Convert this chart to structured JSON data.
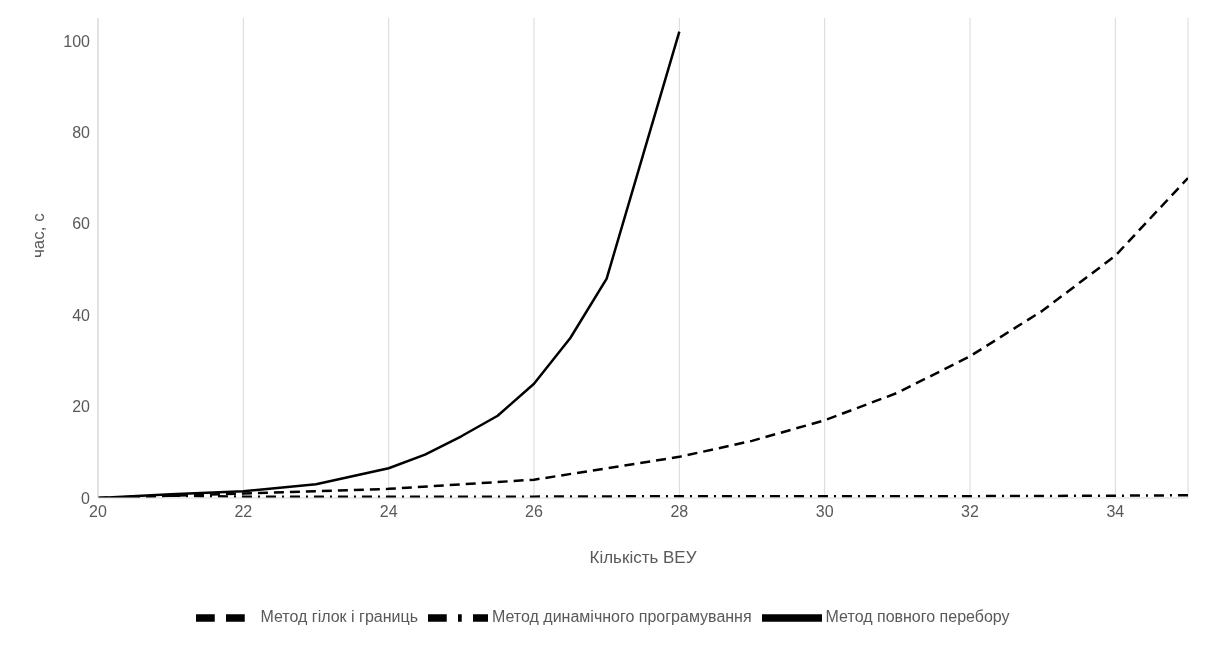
{
  "chart_data": {
    "type": "line",
    "xlabel": "Кількість ВЕУ",
    "ylabel": "час, с",
    "xlim": [
      20,
      35
    ],
    "xticks": [
      20,
      22,
      24,
      26,
      28,
      30,
      32,
      34
    ],
    "ylim": [
      0,
      105
    ],
    "yticks": [
      0,
      20,
      40,
      60,
      80,
      100
    ],
    "grid": "x",
    "legend": "bottom",
    "marker": "none",
    "series": [
      {
        "name": "Метод повного перебору",
        "color": "#000000",
        "line_style": "solid",
        "x": [
          20,
          21,
          22,
          23,
          24,
          24.5,
          25,
          25.5,
          26,
          26.5,
          27,
          27.5,
          28
        ],
        "values": [
          0,
          0.8,
          1.5,
          3,
          6.5,
          9.5,
          13.5,
          18,
          25,
          35,
          48,
          75,
          102
        ]
      },
      {
        "name": "Метод гілок і границь",
        "color": "#000000",
        "line_style": "dashed",
        "x": [
          20,
          22,
          24,
          26,
          28,
          29,
          30,
          31,
          32,
          33,
          34,
          35
        ],
        "values": [
          0,
          1,
          2,
          4,
          9,
          12.5,
          17,
          23,
          31,
          41,
          53,
          70
        ]
      },
      {
        "name": "Метод динамічного програмування",
        "color": "#000000",
        "line_style": "dashdot",
        "x": [
          20,
          21,
          22,
          24,
          26,
          28,
          30,
          32,
          34,
          35
        ],
        "values": [
          0,
          0.5,
          0.3,
          0.3,
          0.3,
          0.4,
          0.4,
          0.4,
          0.5,
          0.6
        ]
      }
    ]
  }
}
